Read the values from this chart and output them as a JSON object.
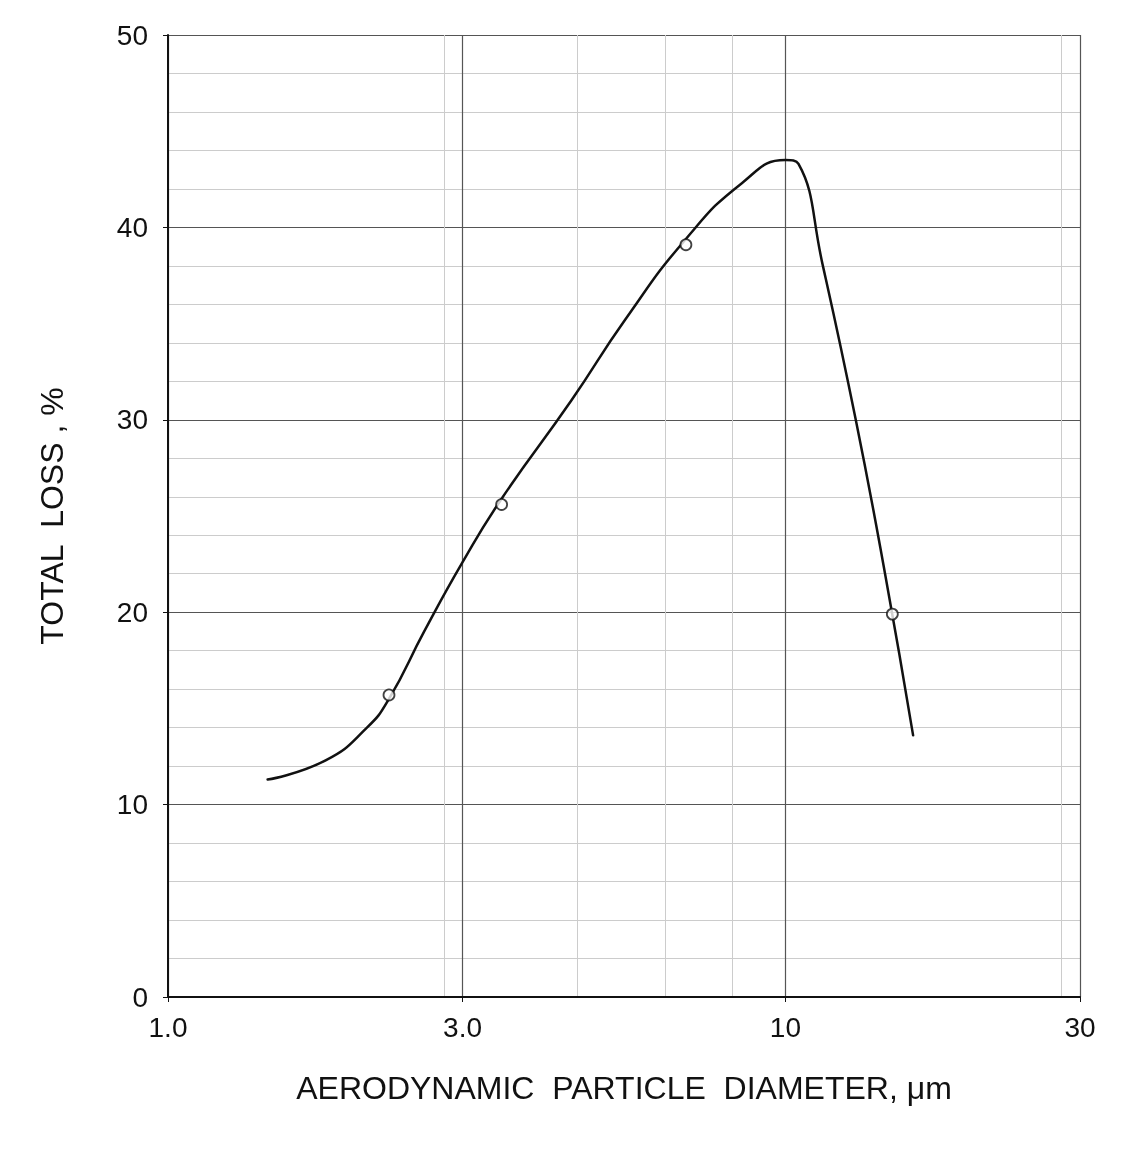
{
  "chart_data": {
    "type": "line",
    "xlabel": "AERODYNAMIC  PARTICLE  DIAMETER, μm",
    "ylabel": "TOTAL  LOSS , %",
    "log": "x",
    "grid": true,
    "xlim": [
      1,
      30
    ],
    "ylim": [
      0,
      50
    ],
    "xticks": [
      {
        "value": 1,
        "label": "1.0"
      },
      {
        "value": 3,
        "label": "3.0"
      },
      10,
      30
    ],
    "yticks": [
      0,
      10,
      20,
      30,
      40,
      50
    ],
    "series": [
      {
        "color": "#111111",
        "marker": "none",
        "line_style": "solid",
        "x": [
          1.45,
          1.8,
          2.1,
          2.28,
          2.6,
          3.0,
          3.47,
          4.5,
          5.5,
          6.9,
          8.5,
          10,
          10.5,
          11.5,
          13,
          14.5,
          16.1
        ],
        "values": [
          11.3,
          12.3,
          14.0,
          15.5,
          19.0,
          22.6,
          25.9,
          31.0,
          35.2,
          39.4,
          42.3,
          43.5,
          43.3,
          38.0,
          30.0,
          22.0,
          13.6
        ]
      },
      {
        "type": "scatter",
        "color": "#111111",
        "marker": "circle",
        "x": [
          2.28,
          3.47,
          6.9,
          14.9
        ],
        "values": [
          15.7,
          25.6,
          39.1,
          19.9
        ]
      }
    ]
  }
}
